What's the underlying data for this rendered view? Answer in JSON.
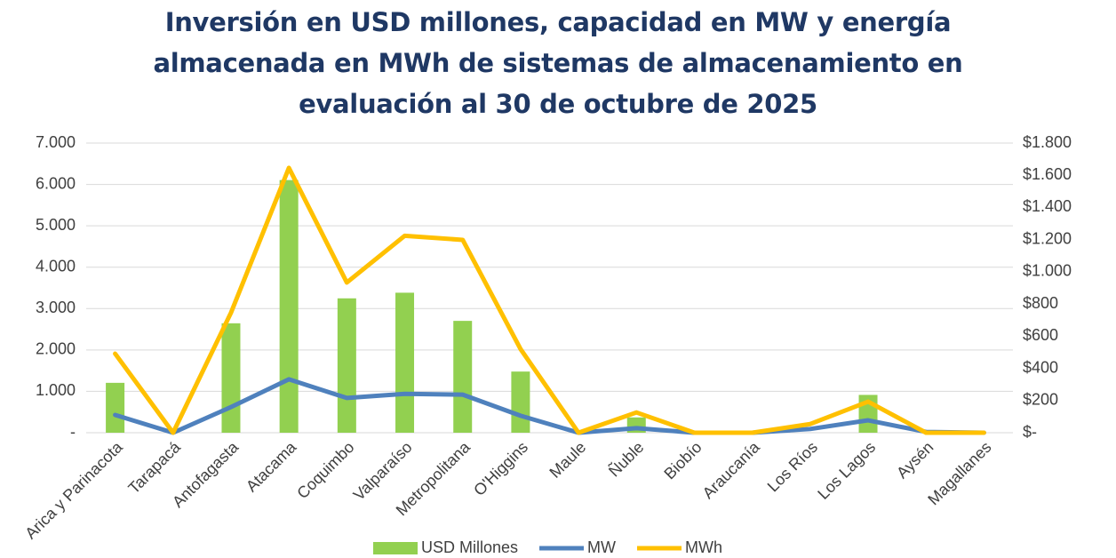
{
  "chart_data": {
    "type": "bar_line",
    "title": "Inversión en USD millones, capacidad en MW y energía almacenada en MWh de sistemas de almacenamiento en evaluación al 30 de octubre de 2025",
    "categories": [
      "Arica y Parinacota",
      "Tarapacá",
      "Antofagasta",
      "Atacama",
      "Coquimbo",
      "Valparaíso",
      "Metropolitana",
      "O'Higgins",
      "Maule",
      "Ñuble",
      "Biobío",
      "Araucanía",
      "Los Ríos",
      "Los Lagos",
      "Aysén",
      "Magallanes"
    ],
    "series": [
      {
        "name": "USD Millones",
        "type": "bar",
        "axis": "y2",
        "color": "#92d050",
        "values": [
          310,
          0,
          680,
          1570,
          835,
          870,
          695,
          380,
          0,
          95,
          0,
          0,
          0,
          235,
          0,
          0
        ]
      },
      {
        "name": "MW",
        "type": "line",
        "color": "#4f81bd",
        "values": [
          430,
          0,
          620,
          1290,
          840,
          940,
          920,
          410,
          0,
          110,
          0,
          0,
          90,
          300,
          20,
          0
        ]
      },
      {
        "name": "MWh",
        "type": "line",
        "color": "#ffc000",
        "values": [
          1910,
          0,
          2900,
          6400,
          3630,
          4760,
          4660,
          2020,
          0,
          490,
          0,
          0,
          210,
          750,
          0,
          0
        ]
      }
    ],
    "ylim": [
      0,
      7000
    ],
    "yticks": [
      {
        "value": 0,
        "label": "-"
      },
      {
        "value": 1000,
        "label": "1.000"
      },
      {
        "value": 2000,
        "label": "2.000"
      },
      {
        "value": 3000,
        "label": "3.000"
      },
      {
        "value": 4000,
        "label": "4.000"
      },
      {
        "value": 5000,
        "label": "5.000"
      },
      {
        "value": 6000,
        "label": "6.000"
      },
      {
        "value": 7000,
        "label": "7.000"
      }
    ],
    "y2lim": [
      0,
      1800
    ],
    "y2ticks": [
      {
        "value": 0,
        "label": "$-"
      },
      {
        "value": 200,
        "label": "$200"
      },
      {
        "value": 400,
        "label": "$400"
      },
      {
        "value": 600,
        "label": "$600"
      },
      {
        "value": 800,
        "label": "$800"
      },
      {
        "value": 1000,
        "label": "$1.000"
      },
      {
        "value": 1200,
        "label": "$1.200"
      },
      {
        "value": 1400,
        "label": "$1.400"
      },
      {
        "value": 1600,
        "label": "$1.600"
      },
      {
        "value": 1800,
        "label": "$1.800"
      }
    ],
    "grid": true,
    "legend": "bottom"
  }
}
